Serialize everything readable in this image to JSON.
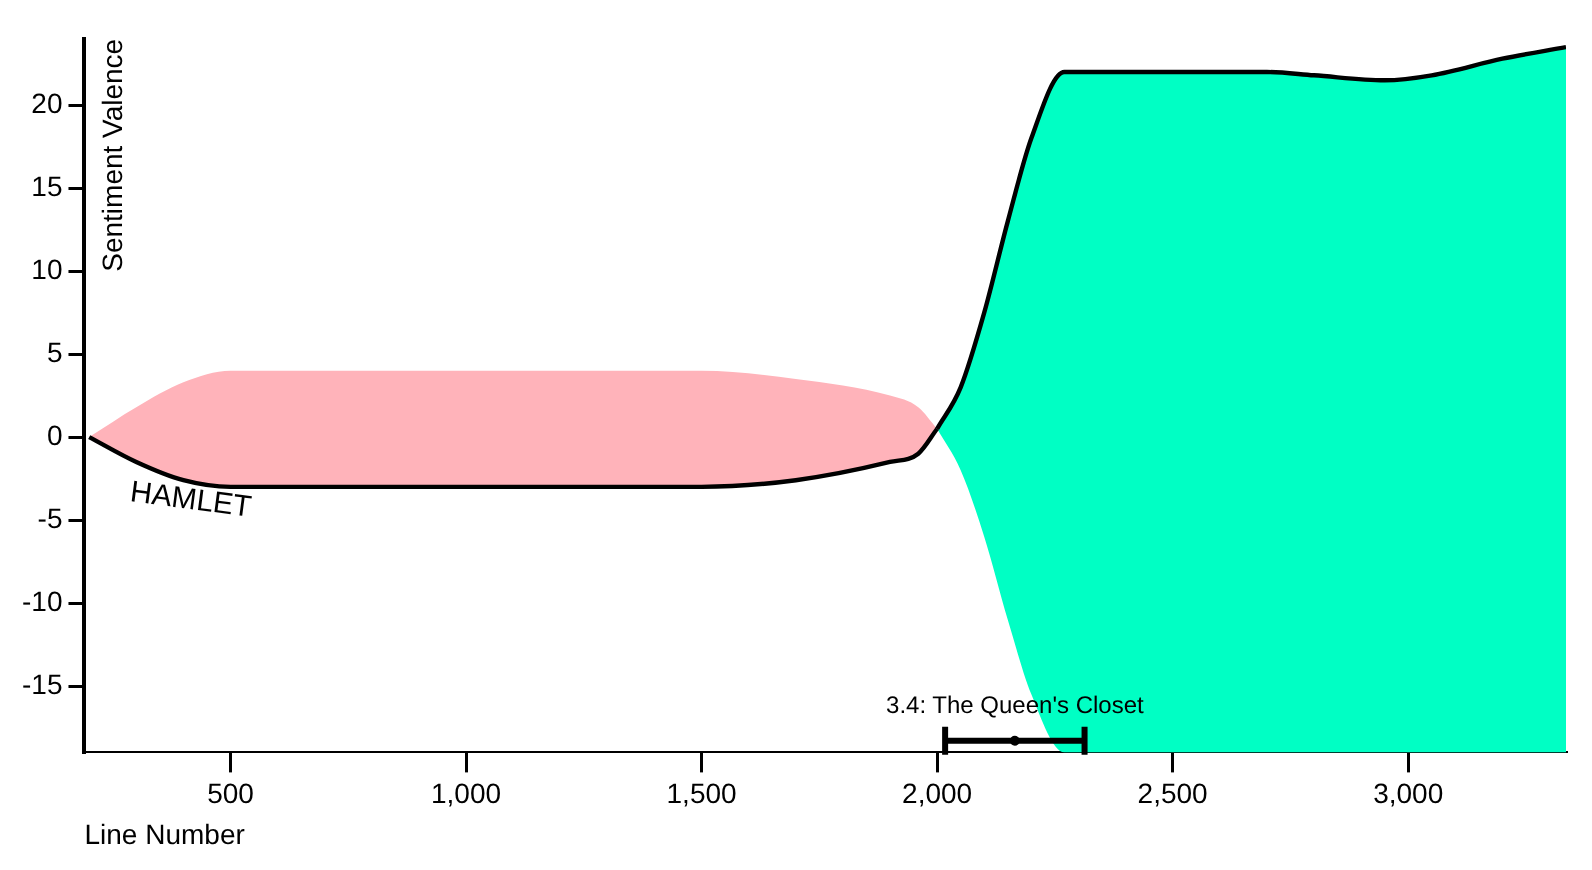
{
  "chart_data": {
    "type": "line",
    "xlabel": "Line Number",
    "ylabel": "Sentiment Valence",
    "xlim": [
      190,
      3335
    ],
    "xticks": [
      {
        "value": 500,
        "label": "500"
      },
      {
        "value": 1000,
        "label": "1,000"
      },
      {
        "value": 1500,
        "label": "1,500"
      },
      {
        "value": 2000,
        "label": "2,000"
      },
      {
        "value": 2500,
        "label": "2,500"
      },
      {
        "value": 3000,
        "label": "3,000"
      }
    ],
    "ylim": [
      -19,
      24
    ],
    "yticks": [
      -15,
      -10,
      -5,
      0,
      5,
      10,
      15,
      20
    ],
    "grid": false,
    "legend": false,
    "marker": "none",
    "series": [
      {
        "name": "HAMLET",
        "color": "#000000",
        "x": [
          200,
          300,
          400,
          500,
          1000,
          1500,
          1700,
          1900,
          1960,
          2000
        ],
        "values": [
          0,
          -1.5,
          -2.6,
          -3,
          -3,
          -3,
          -2.6,
          -1.5,
          -1,
          0.5
        ],
        "lower": [
          0,
          -1.5,
          -2.6,
          -3,
          -3,
          -3,
          -2.6,
          -1.5,
          -1,
          0.5
        ],
        "upper": [
          0,
          1.8,
          3.3,
          4,
          4,
          4,
          3.5,
          2.5,
          1.8,
          0.5
        ],
        "colors": [
          "#ffb3ba",
          "#ffb3ba",
          "#ffb3ba",
          "#ffb3ba",
          "#ffb3ba",
          "#ffb3ba",
          "#ffb3ba",
          "#ffb3ba",
          "#ffb3ba",
          "#ffb3ba"
        ]
      },
      {
        "color": "#000000",
        "x": [
          2000,
          2050,
          2100,
          2150,
          2200,
          2270,
          2500,
          2700,
          2800,
          2950,
          3050,
          3200,
          3335
        ],
        "values": [
          0.5,
          3,
          7.5,
          13,
          18,
          22,
          22,
          22,
          21.8,
          21.5,
          21.8,
          22.8,
          23.5
        ],
        "lower": [
          0.5,
          -2,
          -6,
          -11,
          -15.5,
          -19,
          -19,
          -19,
          -19,
          -19,
          -19,
          -19,
          -19
        ],
        "upper": [
          0.5,
          3,
          7.5,
          13,
          18,
          22,
          22,
          22,
          21.8,
          21.5,
          21.8,
          22.8,
          23.5
        ],
        "colors": [
          "#00ffc4",
          "#00ffc4",
          "#00ffc4",
          "#00ffc4",
          "#00ffc4",
          "#00ffc4",
          "#00ffc4",
          "#00ffc4",
          "#00ffc4",
          "#00ffc4",
          "#00ffc4",
          "#00ffc4",
          "#00ffc4"
        ]
      },
      {
        "type": "scatter",
        "marker": "circle",
        "color": "#000000",
        "x": [
          2165
        ],
        "values": [
          -18.3
        ],
        "xerrors": [
          148
        ]
      }
    ],
    "annotations": [
      {
        "text": "3.4: The Queen's Closet",
        "x": 2165,
        "y": -18.3
      }
    ]
  }
}
